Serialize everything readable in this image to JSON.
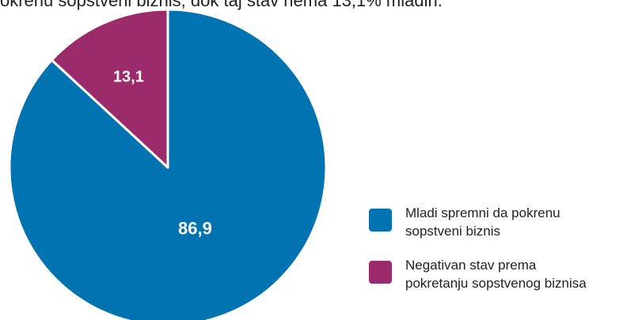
{
  "caption": "okrenu sopstveni biznis, dok taj stav nema 13,1% mladih.",
  "colors": {
    "series_blue": "#0073b0",
    "series_purple": "#9b2b6b"
  },
  "chart_data": {
    "type": "pie",
    "labels": [
      "Mladi spremni da pokrenu sopstveni biznis",
      "Negativan stav prema pokretanju sopstvenog biznisa"
    ],
    "values": [
      86.9,
      13.1
    ],
    "value_labels": [
      "86,9",
      "13,1"
    ],
    "colors": [
      "#0073b0",
      "#9b2b6b"
    ],
    "legend_placement": "right"
  },
  "legend": {
    "items": [
      {
        "line1": "Mladi spremni da pokrenu",
        "line2": "sopstveni biznis"
      },
      {
        "line1": "Negativan stav prema",
        "line2": "pokretanju sopstvenog biznisa"
      }
    ]
  }
}
